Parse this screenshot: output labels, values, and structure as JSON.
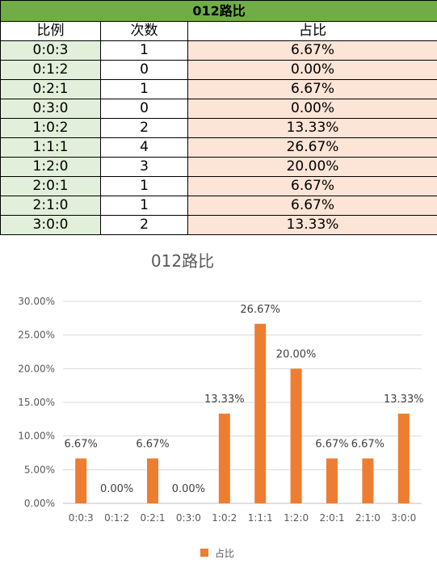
{
  "table": {
    "title": "012路比",
    "headers": [
      "比例",
      "次数",
      "占比"
    ],
    "rows": [
      {
        "ratio": "0:0:3",
        "count": "1",
        "pct": "6.67%"
      },
      {
        "ratio": "0:1:2",
        "count": "0",
        "pct": "0.00%"
      },
      {
        "ratio": "0:2:1",
        "count": "1",
        "pct": "6.67%"
      },
      {
        "ratio": "0:3:0",
        "count": "0",
        "pct": "0.00%"
      },
      {
        "ratio": "1:0:2",
        "count": "2",
        "pct": "13.33%"
      },
      {
        "ratio": "1:1:1",
        "count": "4",
        "pct": "26.67%"
      },
      {
        "ratio": "1:2:0",
        "count": "3",
        "pct": "20.00%"
      },
      {
        "ratio": "2:0:1",
        "count": "1",
        "pct": "6.67%"
      },
      {
        "ratio": "2:1:0",
        "count": "1",
        "pct": "6.67%"
      },
      {
        "ratio": "3:0:0",
        "count": "2",
        "pct": "13.33%"
      }
    ]
  },
  "colors": {
    "header_green": "#70ad47",
    "ratio_bg": "#e2efda",
    "pct_bg": "#fce4d6",
    "bar": "#ed7d31"
  },
  "chart_data": {
    "type": "bar",
    "title": "012路比",
    "categories": [
      "0:0:3",
      "0:1:2",
      "0:2:1",
      "0:3:0",
      "1:0:2",
      "1:1:1",
      "1:2:0",
      "2:0:1",
      "2:1:0",
      "3:0:0"
    ],
    "series": [
      {
        "name": "占比",
        "values": [
          6.67,
          0.0,
          6.67,
          0.0,
          13.33,
          26.67,
          20.0,
          6.67,
          6.67,
          13.33
        ]
      }
    ],
    "data_labels": [
      "6.67%",
      "0.00%",
      "6.67%",
      "0.00%",
      "13.33%",
      "26.67%",
      "20.00%",
      "6.67%",
      "6.67%",
      "13.33%"
    ],
    "ytick_labels": [
      "0.00%",
      "5.00%",
      "10.00%",
      "15.00%",
      "20.00%",
      "25.00%",
      "30.00%"
    ],
    "ylim": [
      0,
      30
    ],
    "ystep": 5,
    "grid": true,
    "legend_position": "bottom",
    "xlabel": "",
    "ylabel": ""
  }
}
